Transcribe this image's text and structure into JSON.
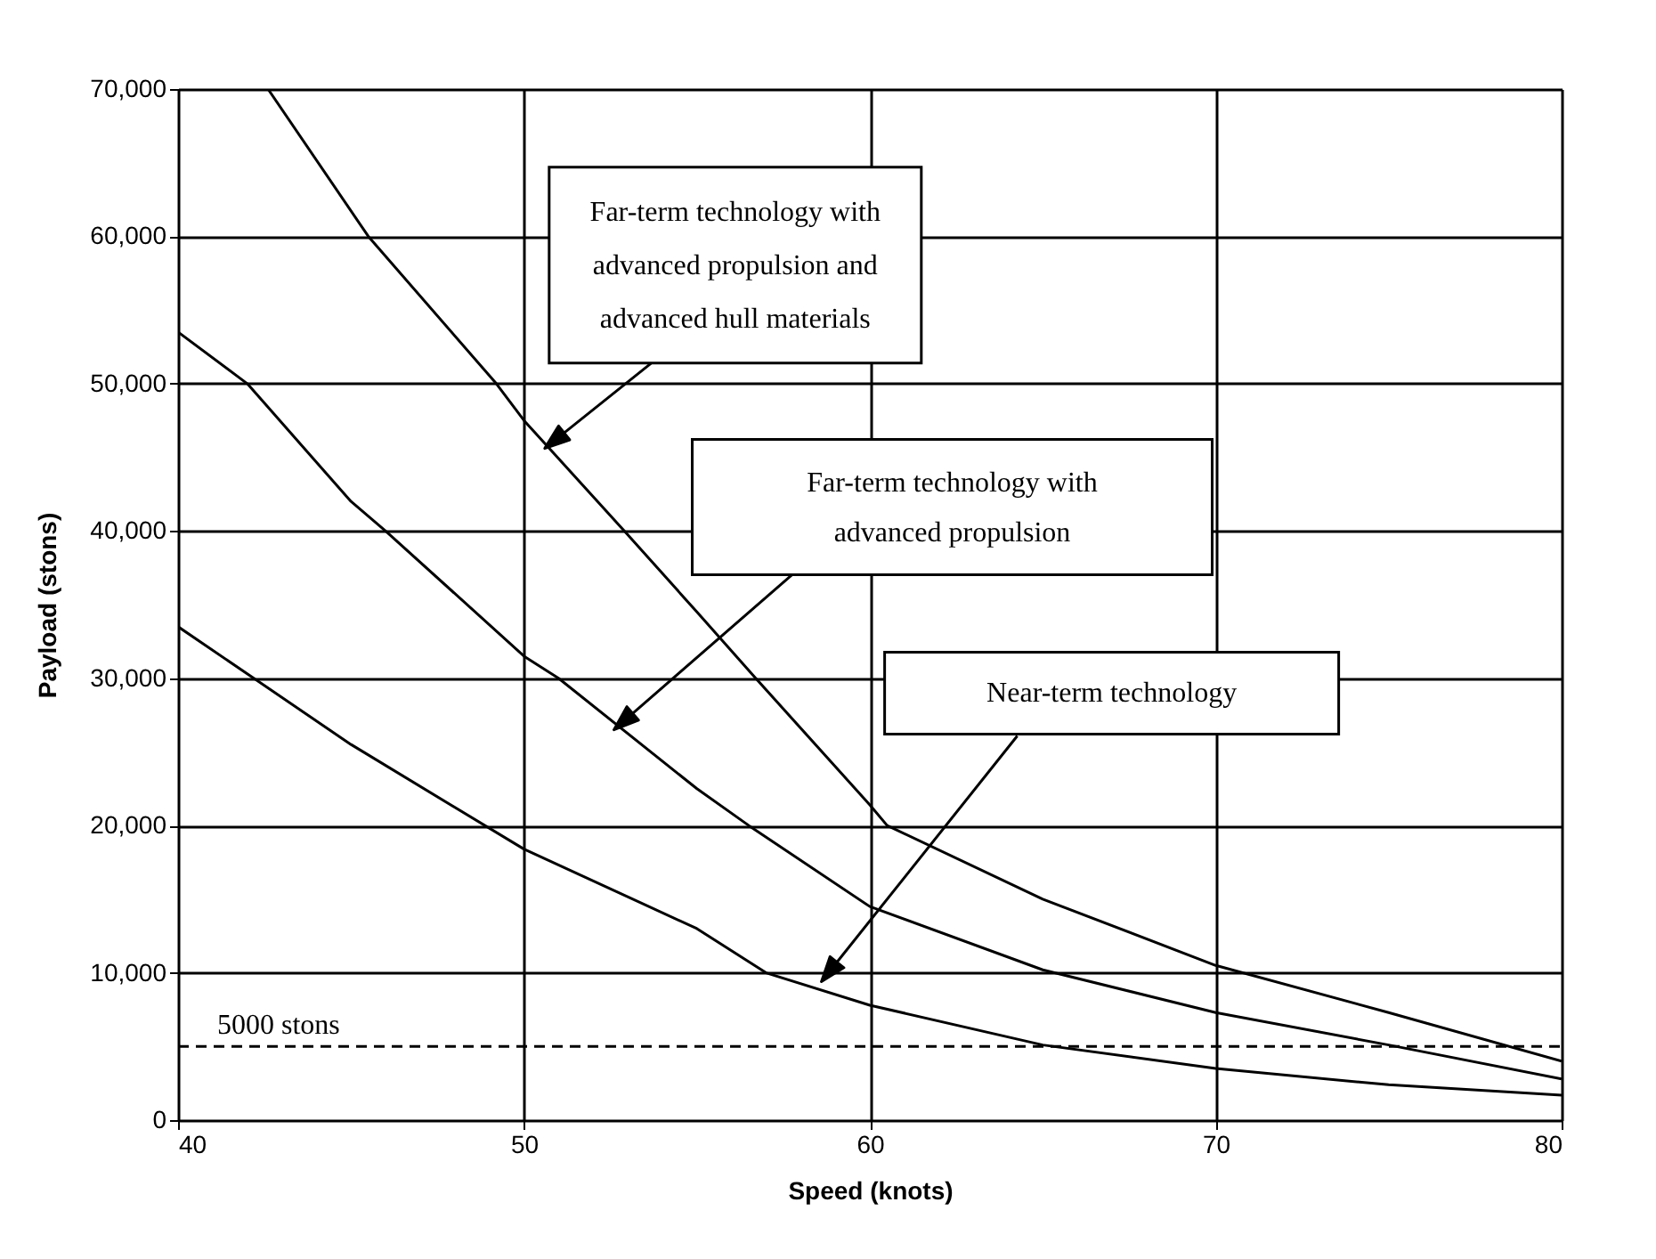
{
  "chart_data": {
    "type": "line",
    "xlabel": "Speed (knots)",
    "ylabel": "Payload (stons)",
    "xlim": [
      40,
      80
    ],
    "xticks": [
      40,
      50,
      60,
      70,
      80
    ],
    "ylim": [
      0,
      70000
    ],
    "yticks": [
      0,
      {
        "value": 10000,
        "label": "10,000"
      },
      {
        "value": 20000,
        "label": "20,000"
      },
      {
        "value": 30000,
        "label": "30,000"
      },
      {
        "value": 40000,
        "label": "40,000"
      },
      {
        "value": 50000,
        "label": "50,000"
      },
      {
        "value": 60000,
        "label": "60,000"
      },
      {
        "value": 70000,
        "label": "70,000"
      }
    ],
    "grid": true,
    "line_style": "solid",
    "marker": "none",
    "series": [
      {
        "color": "#000000",
        "x": [
          42.6,
          45.5,
          49.2,
          50,
          52.9,
          55,
          56.7,
          60,
          60.5,
          65,
          70,
          75,
          80
        ],
        "values": [
          70000,
          60000,
          50000,
          47500,
          40000,
          34500,
          30000,
          21400,
          20000,
          15000,
          10500,
          7300,
          4000
        ]
      },
      {
        "color": "#000000",
        "x": [
          40,
          42,
          45,
          46,
          50,
          51,
          55,
          56.5,
          60,
          65,
          70,
          75,
          80
        ],
        "values": [
          53500,
          50000,
          42000,
          40000,
          31500,
          30000,
          22500,
          20000,
          14500,
          10200,
          7300,
          5100,
          2800
        ]
      },
      {
        "color": "#000000",
        "x": [
          40,
          45,
          50,
          55,
          57,
          60,
          65,
          70,
          75,
          80
        ],
        "values": [
          33500,
          25500,
          18400,
          13000,
          10000,
          7800,
          5100,
          3500,
          2400,
          1700
        ]
      }
    ],
    "ref_lines": [
      {
        "axis": "y",
        "value": 5000,
        "label": "5000 stons",
        "color": "#000000",
        "line_style": "dashed"
      }
    ],
    "annotations": [
      {
        "text": "Far-term technology with\nadvanced propulsion and\nadvanced hull materials",
        "x": 50.6,
        "y": 45600
      },
      {
        "text": "Far-term technology with\nadvanced propulsion",
        "x": 52.6,
        "y": 26500
      },
      {
        "text": "Near-term technology",
        "x": 58.6,
        "y": 9400
      }
    ]
  }
}
